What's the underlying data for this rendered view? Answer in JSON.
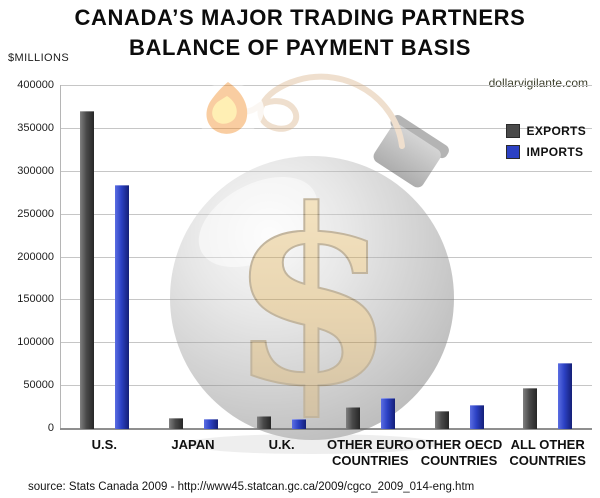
{
  "title": {
    "line1": "CANADA’S MAJOR TRADING PARTNERS",
    "line2": "BALANCE OF PAYMENT BASIS"
  },
  "watermark": {
    "site": "dollarvigilante.com",
    "symbol": "$"
  },
  "source_text": "source: Stats Canada 2009 - http://www45.statcan.gc.ca/2009/cgco_2009_014-eng.htm",
  "chart_data": {
    "type": "bar",
    "title": "CANADA’S MAJOR TRADING PARTNERS — BALANCE OF PAYMENT BASIS",
    "xlabel": "",
    "ylabel": "$MILLIONS",
    "ylim": [
      0,
      400000
    ],
    "ytick_step": 50000,
    "grid": true,
    "legend_position": "top-right",
    "categories": [
      "U.S.",
      "JAPAN",
      "U.K.",
      "OTHER EURO\nCOUNTRIES",
      "OTHER OECD\nCOUNTRIES",
      "ALL OTHER\nCOUNTRIES"
    ],
    "series": [
      {
        "name": "EXPORTS",
        "color": "#4a4a4a",
        "values": [
          370000,
          12000,
          14000,
          24000,
          20000,
          47000
        ]
      },
      {
        "name": "IMPORTS",
        "color": "#2c41c4",
        "values": [
          283000,
          10000,
          10000,
          35000,
          27000,
          76000
        ]
      }
    ]
  }
}
